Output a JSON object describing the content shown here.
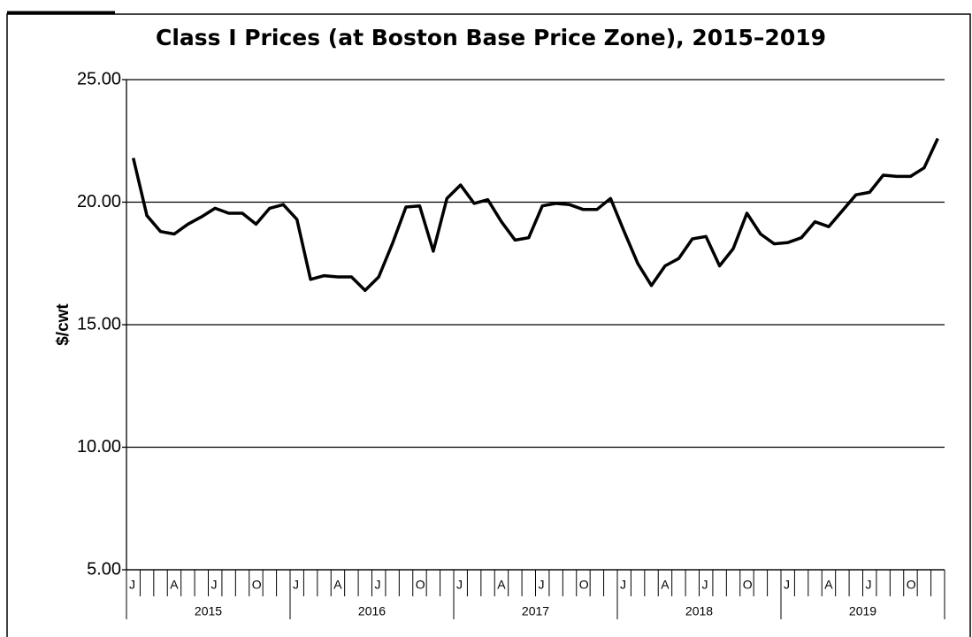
{
  "chart_data": {
    "type": "line",
    "title": "Class I Prices (at Boston Base Price Zone), 2015–2019",
    "ylabel": "$/cwt",
    "color": "#000000",
    "categories": [
      "J",
      null,
      null,
      "A",
      null,
      null,
      "J",
      null,
      null,
      "O",
      null,
      null,
      "J",
      null,
      null,
      "A",
      null,
      null,
      "J",
      null,
      null,
      "O",
      null,
      null,
      "J",
      null,
      null,
      "A",
      null,
      null,
      "J",
      null,
      null,
      "O",
      null,
      null,
      "J",
      null,
      null,
      "A",
      null,
      null,
      "J",
      null,
      null,
      "O",
      null,
      null,
      "J",
      null,
      null,
      "A",
      null,
      null,
      "J",
      null,
      null,
      "O",
      null,
      null
    ],
    "year_labels": [
      "2015",
      "2016",
      "2017",
      "2018",
      "2019"
    ],
    "values": [
      21.8,
      19.45,
      18.8,
      18.7,
      19.1,
      19.4,
      19.75,
      19.55,
      19.55,
      19.1,
      19.75,
      19.9,
      19.3,
      16.85,
      17.0,
      16.95,
      16.95,
      16.4,
      16.95,
      18.3,
      19.8,
      19.85,
      18.0,
      20.15,
      20.7,
      19.95,
      20.1,
      19.2,
      18.45,
      18.55,
      19.85,
      19.95,
      19.9,
      19.7,
      19.7,
      20.15,
      18.8,
      17.5,
      16.6,
      17.4,
      17.7,
      18.5,
      18.6,
      17.4,
      18.1,
      19.55,
      18.7,
      18.3,
      18.35,
      18.55,
      19.2,
      19.0,
      19.65,
      20.3,
      20.4,
      21.1,
      21.05,
      21.05,
      21.4,
      22.6
    ],
    "ylim": [
      5,
      25
    ],
    "yticks": [
      {
        "value": 5,
        "label": "5.00"
      },
      {
        "value": 10,
        "label": "10.00"
      },
      {
        "value": 15,
        "label": "15.00"
      },
      {
        "value": 20,
        "label": "20.00"
      },
      {
        "value": 25,
        "label": "25.00"
      }
    ],
    "grid": true
  }
}
